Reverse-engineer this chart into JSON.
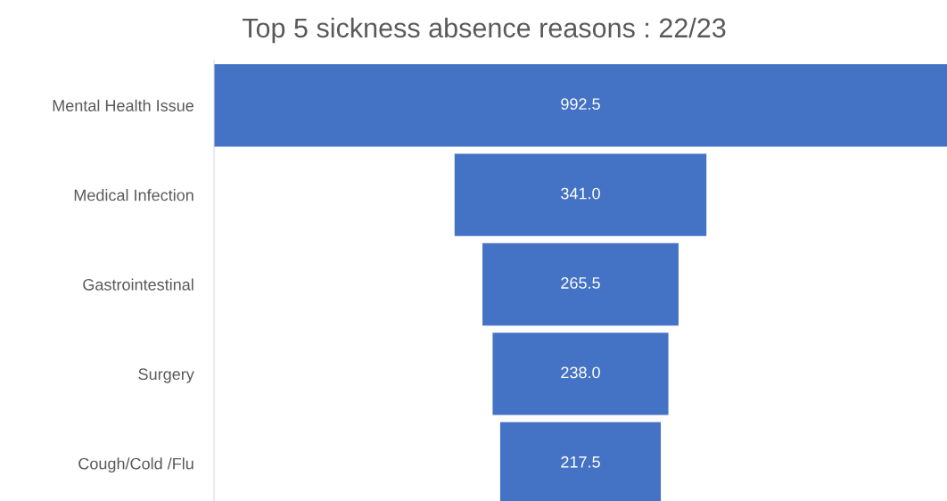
{
  "chart_data": {
    "type": "other",
    "title": "Top 5 sickness absence reasons : 22/23",
    "categories": [
      "Mental Health Issue",
      "Medical Infection",
      "Gastrointestinal",
      "Surgery",
      "Cough/Cold /Flu"
    ],
    "values": [
      992.5,
      341.0,
      265.5,
      238.0,
      217.5
    ],
    "value_labels": [
      "992.5",
      "341.0",
      "265.5",
      "238.0",
      "217.5"
    ],
    "color": "#4472c4"
  }
}
